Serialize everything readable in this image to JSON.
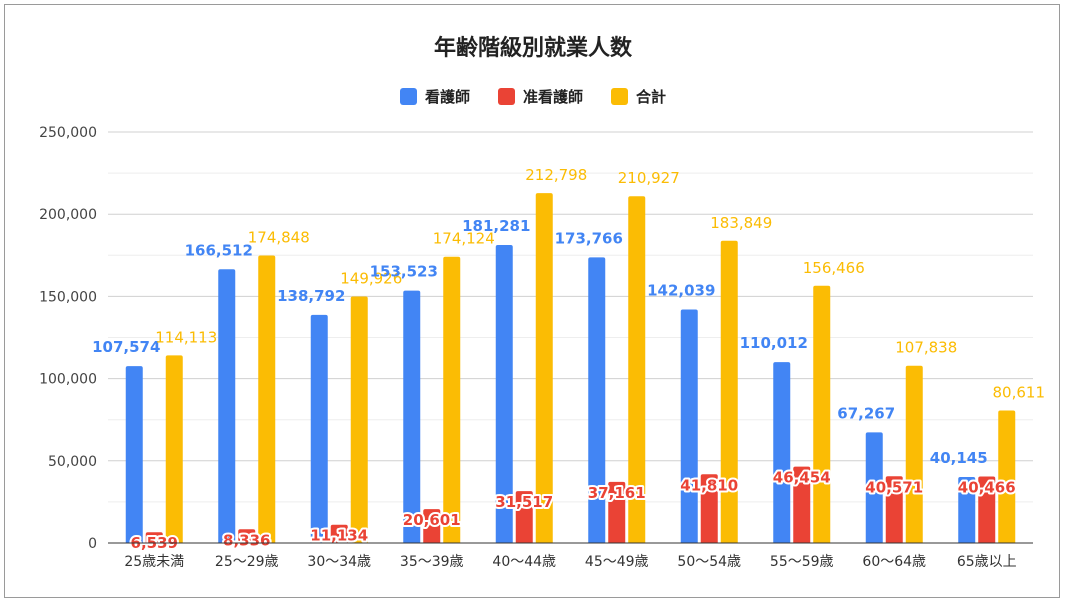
{
  "chart_data": {
    "type": "bar",
    "title": "年齢階級別就業人数",
    "xlabel": "",
    "ylabel": "",
    "ylim": [
      0,
      250000
    ],
    "yticks": [
      0,
      50000,
      100000,
      150000,
      200000,
      250000
    ],
    "ytick_labels": [
      "0",
      "50,000",
      "100,000",
      "150,000",
      "200,000",
      "250,000"
    ],
    "grid": true,
    "legend_position": "top",
    "categories": [
      "25歳未満",
      "25～29歳",
      "30～34歳",
      "35～39歳",
      "40～44歳",
      "45～49歳",
      "50～54歳",
      "55～59歳",
      "60～64歳",
      "65歳以上"
    ],
    "series": [
      {
        "name": "看護師",
        "color": "#4285f4",
        "values": [
          107574,
          166512,
          138792,
          153523,
          181281,
          173766,
          142039,
          110012,
          67267,
          40145
        ],
        "labels": [
          "107,574",
          "166,512",
          "138,792",
          "153,523",
          "181,281",
          "173,766",
          "142,039",
          "110,012",
          "67,267",
          "40,145"
        ]
      },
      {
        "name": "准看護師",
        "color": "#ea4335",
        "values": [
          6539,
          8336,
          11134,
          20601,
          31517,
          37161,
          41810,
          46454,
          40571,
          40466
        ],
        "labels": [
          "6,539",
          "8,336",
          "11,134",
          "20,601",
          "31,517",
          "37,161",
          "41,810",
          "46,454",
          "40,571",
          "40,466"
        ]
      },
      {
        "name": "合計",
        "color": "#fbbc04",
        "values": [
          114113,
          174848,
          149926,
          174124,
          212798,
          210927,
          183849,
          156466,
          107838,
          80611
        ],
        "labels": [
          "114,113",
          "174,848",
          "149,926",
          "174,124",
          "212,798",
          "210,927",
          "183,849",
          "156,466",
          "107,838",
          "80,611"
        ]
      }
    ]
  }
}
